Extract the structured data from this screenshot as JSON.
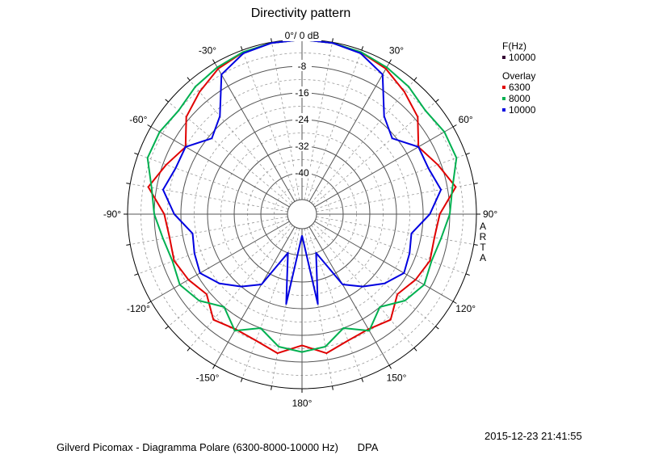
{
  "chart_data": {
    "type": "polar-line",
    "title": "Directivity pattern",
    "reference_label": "0°/ 0 dB",
    "radial_range_db": [
      -48,
      0
    ],
    "radial_ticks": [
      {
        "value": -8,
        "label": "-8"
      },
      {
        "value": -16,
        "label": "-16"
      },
      {
        "value": -24,
        "label": "-24"
      },
      {
        "value": -32,
        "label": "-32"
      },
      {
        "value": -40,
        "label": "-40"
      }
    ],
    "angle_ticks": [
      {
        "angle": 0,
        "label": ""
      },
      {
        "angle": 30,
        "label": "30°"
      },
      {
        "angle": 60,
        "label": "60°"
      },
      {
        "angle": 90,
        "label": "90°"
      },
      {
        "angle": 120,
        "label": "120°"
      },
      {
        "angle": 150,
        "label": "150°"
      },
      {
        "angle": 180,
        "label": "180°"
      },
      {
        "angle": -150,
        "label": "-150°"
      },
      {
        "angle": -120,
        "label": "-120°"
      },
      {
        "angle": -90,
        "label": "-90°"
      },
      {
        "angle": -60,
        "label": "-60°"
      },
      {
        "angle": -30,
        "label": "-30°"
      }
    ],
    "series": [
      {
        "name": "6300",
        "color": "#e00000",
        "angles": [
          -180,
          -170,
          -160,
          -150,
          -140,
          -130,
          -120,
          -110,
          -100,
          -90,
          -80,
          -70,
          -60,
          -50,
          -40,
          -30,
          -20,
          -10,
          0,
          10,
          20,
          30,
          40,
          50,
          60,
          70,
          80,
          90,
          100,
          110,
          120,
          130,
          140,
          150,
          160,
          170,
          180
        ],
        "values": [
          -13,
          -10,
          -12,
          -12.5,
          -11,
          -15,
          -13,
          -11.5,
          -12,
          -11,
          -5.5,
          -9,
          -12,
          -7,
          -4.5,
          -2,
          -0.7,
          -0.2,
          0,
          -0.2,
          -0.7,
          -2,
          -4.5,
          -7,
          -12,
          -9,
          -5.5,
          -11,
          -12,
          -11.5,
          -13,
          -15,
          -11,
          -12.5,
          -12,
          -10,
          -13
        ]
      },
      {
        "name": "8000",
        "color": "#00b050",
        "angles": [
          -180,
          -170,
          -160,
          -150,
          -140,
          -130,
          -120,
          -110,
          -100,
          -90,
          -80,
          -70,
          -60,
          -50,
          -40,
          -30,
          -20,
          -10,
          0,
          10,
          20,
          30,
          40,
          50,
          60,
          70,
          80,
          90,
          100,
          110,
          120,
          130,
          140,
          150,
          160,
          170,
          180
        ],
        "values": [
          -11,
          -12,
          -16,
          -12,
          -16,
          -12,
          -10,
          -11,
          -10,
          -8,
          -6.5,
          -3,
          -3,
          -4,
          -2.5,
          -1.5,
          -0.6,
          -0.2,
          0,
          -0.2,
          -0.6,
          -1.5,
          -2.5,
          -4,
          -3,
          -3,
          -6.5,
          -8,
          -10,
          -11,
          -10,
          -12,
          -16,
          -12,
          -16,
          -12,
          -11
        ]
      },
      {
        "name": "10000",
        "color": "#0000e0",
        "angles": [
          -180,
          -170,
          -160,
          -150,
          -140,
          -130,
          -120,
          -110,
          -100,
          -90,
          -80,
          -70,
          -60,
          -50,
          -40,
          -30,
          -20,
          -10,
          0,
          10,
          20,
          30,
          40,
          50,
          60,
          70,
          80,
          90,
          100,
          110,
          120,
          130,
          140,
          150,
          160,
          170,
          180
        ],
        "values": [
          -46,
          -25,
          -40,
          -28,
          -24,
          -20,
          -17,
          -18,
          -19,
          -14,
          -10,
          -12,
          -12,
          -17,
          -14,
          -4,
          -1,
          -0.2,
          0,
          -0.2,
          -1,
          -4,
          -14,
          -17,
          -12,
          -12,
          -10,
          -14,
          -19,
          -18,
          -17,
          -20,
          -24,
          -28,
          -40,
          -25,
          -46
        ]
      }
    ],
    "grid": true
  },
  "legend": {
    "freq_header": "F(Hz)",
    "freq_value": "10000",
    "freq_color": "#330033",
    "overlay_header": "Overlay",
    "overlay_items": [
      {
        "label": "6300",
        "color": "#e00000"
      },
      {
        "label": "8000",
        "color": "#00b050"
      },
      {
        "label": "10000",
        "color": "#0000e0"
      }
    ]
  },
  "side_label": [
    "A",
    "R",
    "T",
    "A"
  ],
  "timestamp": "2015-12-23  21:41:55",
  "footer": {
    "caption": "Gilverd Picomax - Diagramma Polare (6300-8000-10000 Hz)",
    "brand": "DPA"
  }
}
